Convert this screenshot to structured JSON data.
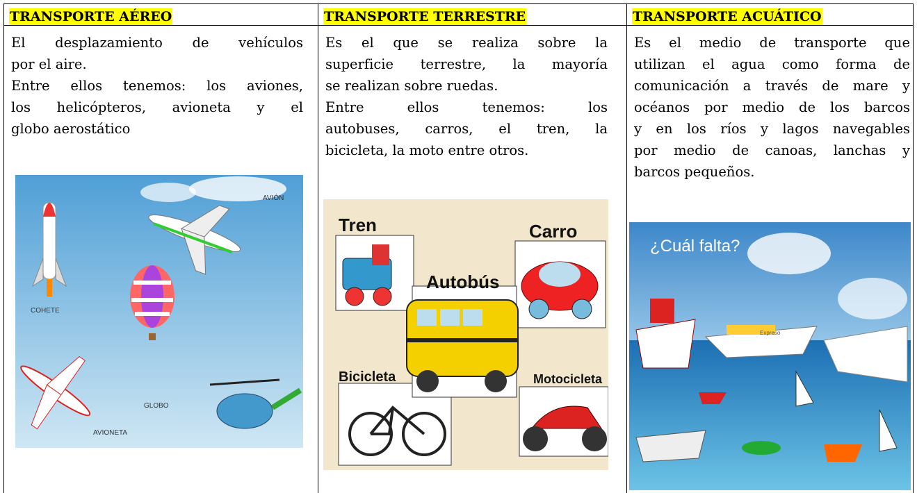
{
  "columns": [
    {
      "heading": "TRANSPORTE AÉREO",
      "paragraphs": [
        {
          "lines": [
            "El desplazamiento de vehículos",
            "por el aire."
          ]
        },
        {
          "lines": [
            "Entre ellos tenemos: los aviones,",
            "los helicópteros, avioneta y el",
            "globo aerostático"
          ]
        }
      ],
      "image": {
        "labels": [
          "AVIÓN",
          "COHETE",
          "GLOBO",
          "AVIONETA"
        ]
      }
    },
    {
      "heading": "TRANSPORTE TERRESTRE",
      "paragraphs": [
        {
          "lines": [
            "Es el que se realiza sobre la",
            "superficie terrestre, la mayoría",
            "se realizan sobre ruedas."
          ]
        },
        {
          "lines": [
            "Entre ellos tenemos: los",
            "autobuses, carros, el tren, la",
            "bicicleta, la moto entre otros."
          ]
        }
      ],
      "image": {
        "labels": [
          "Tren",
          "Carro",
          "Autobús",
          "Bicicleta",
          "Motocicleta"
        ]
      }
    },
    {
      "heading": "TRANSPORTE ACUÁTICO",
      "paragraphs": [
        {
          "lines": [
            "Es el medio de transporte que",
            "utilizan el agua como forma de",
            "comunicación a través de mare y",
            "océanos por medio de los barcos",
            "y en los ríos y lagos navegables",
            "por medio de canoas, lanchas y",
            "barcos pequeños."
          ]
        }
      ],
      "image": {
        "labels": [
          "¿Cuál falta?",
          "Expreso"
        ]
      }
    }
  ]
}
